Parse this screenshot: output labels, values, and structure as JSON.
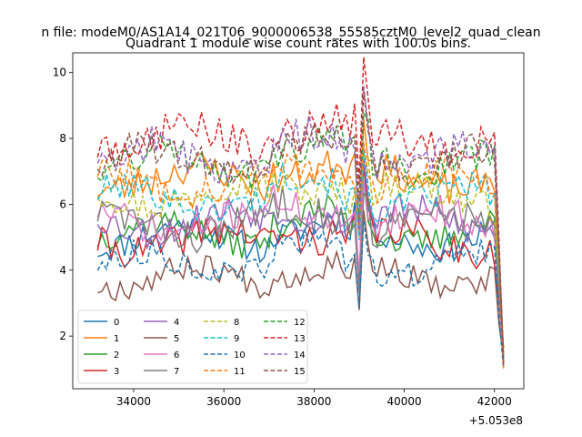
{
  "chart_data": {
    "type": "line",
    "suptitle": "n file: modeM0/AS1A14_021T06_9000006538_55585cztM0_level2_quad_clean",
    "title": "Quadrant 1 module wise count rates with 100.0s bins.",
    "xlabel": "",
    "ylabel": "",
    "x_offset_label": "+5.053e8",
    "xlim": [
      32650,
      42650
    ],
    "ylim": [
      0.4,
      10.6
    ],
    "x_start": 33200,
    "x_end": 42250,
    "x_step": 100,
    "xticks": [
      34000,
      36000,
      38000,
      40000,
      42000
    ],
    "xtick_labels": [
      "34000",
      "36000",
      "38000",
      "40000",
      "42000"
    ],
    "yticks": [
      2,
      4,
      6,
      8,
      10
    ],
    "ytick_labels": [
      "2",
      "4",
      "6",
      "8",
      "10"
    ],
    "grid": false,
    "legend_position": "lower-left",
    "series": [
      {
        "name": "0",
        "color": "#1f77b4",
        "dash": "solid",
        "mean": 5.0,
        "amp": 0.28,
        "seed": 11,
        "spike": 1.8
      },
      {
        "name": "1",
        "color": "#ff7f0e",
        "dash": "solid",
        "mean": 6.8,
        "amp": 0.32,
        "seed": 23,
        "spike": 1.6
      },
      {
        "name": "2",
        "color": "#2ca02c",
        "dash": "solid",
        "mean": 5.15,
        "amp": 0.28,
        "seed": 37,
        "spike": 1.6
      },
      {
        "name": "3",
        "color": "#d62728",
        "dash": "solid",
        "mean": 4.9,
        "amp": 0.32,
        "seed": 41,
        "spike": 1.7
      },
      {
        "name": "4",
        "color": "#9467bd",
        "dash": "solid",
        "mean": 5.5,
        "amp": 0.32,
        "seed": 53,
        "spike": 1.7
      },
      {
        "name": "5",
        "color": "#8c564b",
        "dash": "solid",
        "mean": 3.8,
        "amp": 0.25,
        "seed": 67,
        "spike": 1.5
      },
      {
        "name": "6",
        "color": "#e377c2",
        "dash": "solid",
        "mean": 5.5,
        "amp": 0.3,
        "seed": 71,
        "spike": 1.7
      },
      {
        "name": "7",
        "color": "#7f7f7f",
        "dash": "solid",
        "mean": 5.4,
        "amp": 0.35,
        "seed": 83,
        "spike": 1.8
      },
      {
        "name": "8",
        "color": "#bcbd22",
        "dash": "dashed",
        "mean": 6.3,
        "amp": 0.3,
        "seed": 97,
        "spike": 1.6
      },
      {
        "name": "9",
        "color": "#17becf",
        "dash": "dashed",
        "mean": 6.2,
        "amp": 0.3,
        "seed": 101,
        "spike": 1.6
      },
      {
        "name": "10",
        "color": "#1f77b4",
        "dash": "dashed",
        "mean": 4.2,
        "amp": 0.25,
        "seed": 113,
        "spike": 1.5
      },
      {
        "name": "11",
        "color": "#ff7f0e",
        "dash": "dashed",
        "mean": 6.7,
        "amp": 0.3,
        "seed": 127,
        "spike": 1.6
      },
      {
        "name": "12",
        "color": "#2ca02c",
        "dash": "dashed",
        "mean": 7.3,
        "amp": 0.32,
        "seed": 131,
        "spike": 1.8
      },
      {
        "name": "13",
        "color": "#d62728",
        "dash": "dashed",
        "mean": 8.0,
        "amp": 0.35,
        "seed": 149,
        "spike": 2.0
      },
      {
        "name": "14",
        "color": "#9467bd",
        "dash": "dashed",
        "mean": 7.5,
        "amp": 0.35,
        "seed": 157,
        "spike": 1.9
      },
      {
        "name": "15",
        "color": "#8c564b",
        "dash": "dashed",
        "mean": 7.4,
        "amp": 0.32,
        "seed": 163,
        "spike": 1.9
      }
    ]
  }
}
